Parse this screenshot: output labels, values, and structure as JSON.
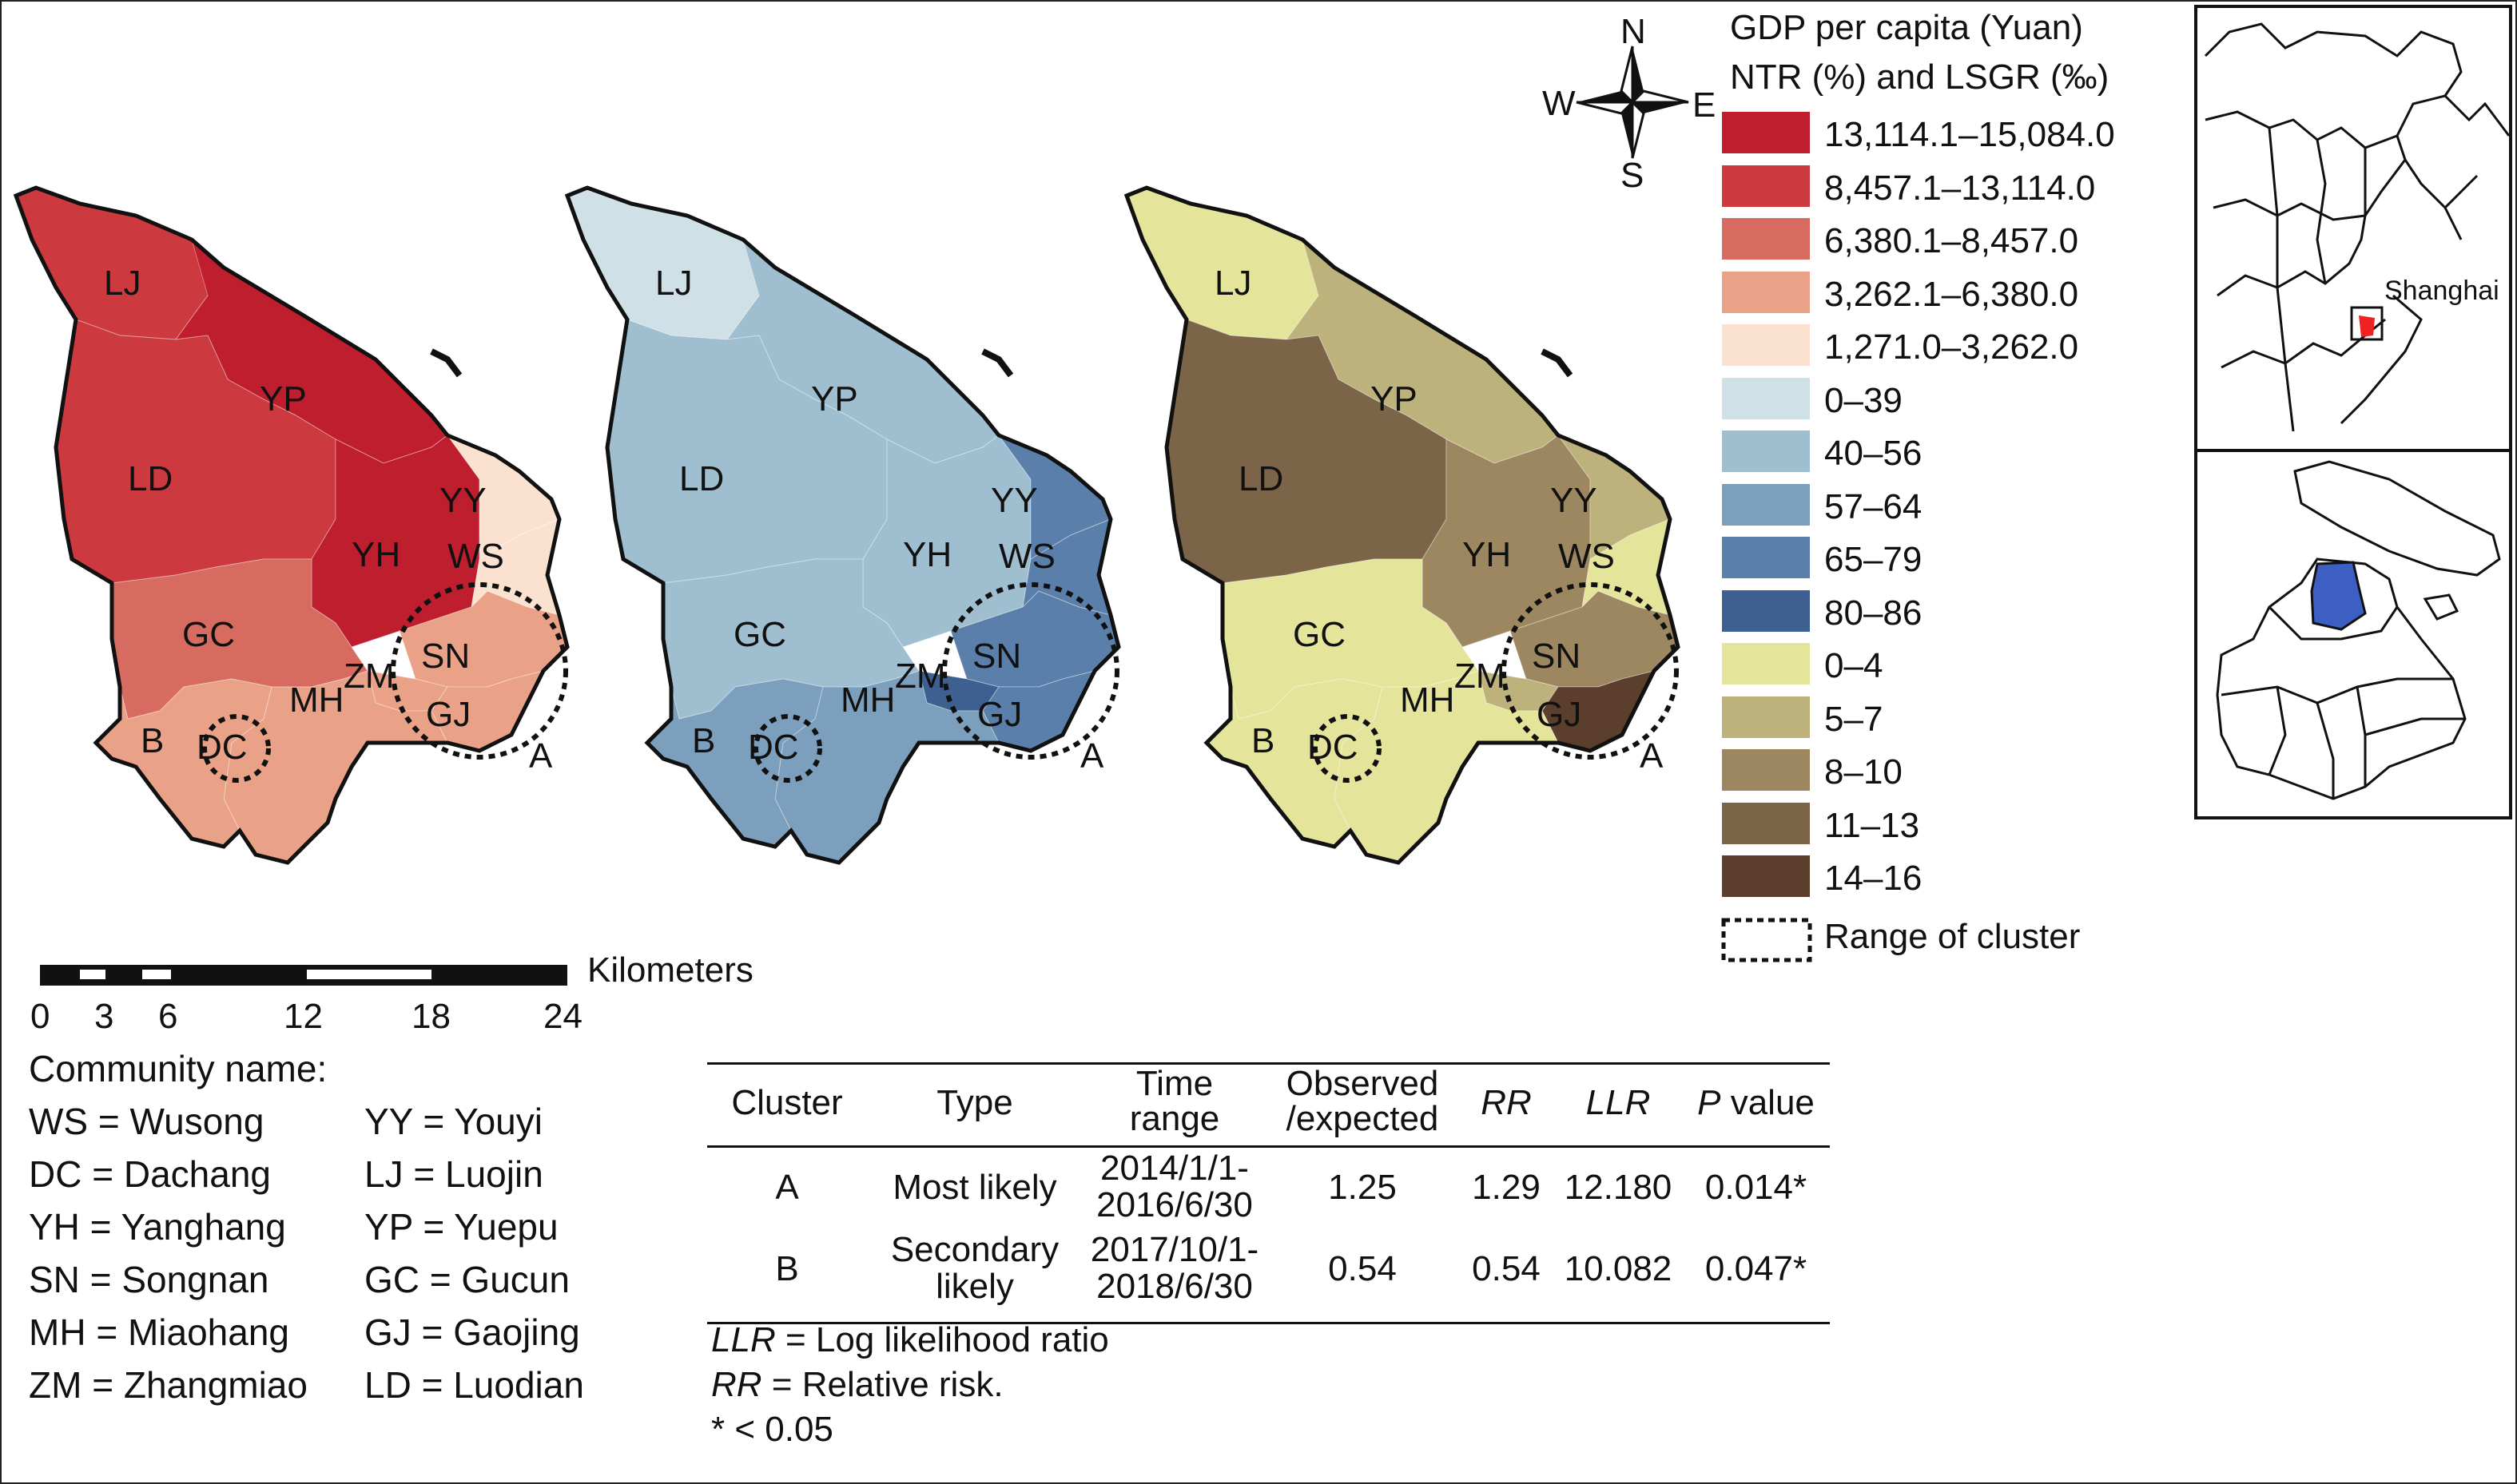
{
  "legend": {
    "title_gdp": "GDP per capita (Yuan)",
    "title_ntr": "NTR (%) and LSGR (‰)",
    "gdp": [
      {
        "label": "13,114.1–15,084.0",
        "color": "#be1e2d"
      },
      {
        "label": "8,457.1–13,114.0",
        "color": "#cc3a40"
      },
      {
        "label": "6,380.1–8,457.0",
        "color": "#d76b5f"
      },
      {
        "label": "3,262.1–6,380.0",
        "color": "#e9a287"
      },
      {
        "label": "1,271.0–3,262.0",
        "color": "#fbe2d0"
      }
    ],
    "ntr": [
      {
        "label": "0–39",
        "color": "#cfe1e6"
      },
      {
        "label": "40–56",
        "color": "#9fbfd1"
      },
      {
        "label": "57–64",
        "color": "#7c9fbd"
      },
      {
        "label": "65–79",
        "color": "#5a7fab"
      },
      {
        "label": "80–86",
        "color": "#3d6091"
      }
    ],
    "lsgr": [
      {
        "label": "0–4",
        "color": "#e4e49a"
      },
      {
        "label": "5–7",
        "color": "#bdb27b"
      },
      {
        "label": "8–10",
        "color": "#9c8760"
      },
      {
        "label": "11–13",
        "color": "#7b6447"
      },
      {
        "label": "14–16",
        "color": "#5b3e2c"
      }
    ],
    "cluster_label": "Range of cluster"
  },
  "compass": {
    "n": "N",
    "s": "S",
    "e": "E",
    "w": "W"
  },
  "maps": {
    "labels": {
      "lj": "LJ",
      "yp": "YP",
      "ld": "LD",
      "yy": "YY",
      "ws": "WS",
      "yh": "YH",
      "gc": "GC",
      "sn": "SN",
      "zm": "ZM",
      "mh": "MH",
      "gj": "GJ",
      "b": "B",
      "dc": "DC",
      "a": "A"
    },
    "colors": {
      "gdp": {
        "lj": "#cc3a40",
        "yp": "#be1e2d",
        "ld": "#cc3a40",
        "yh": "#be1e2d",
        "gc": "#d76b5f",
        "mh": "#e9a287",
        "b": "#e9a287",
        "sn": "#e9a287",
        "gj": "#e9a287",
        "zm": "#e9a287",
        "yy": "#fbe2d0",
        "ws": "#fbe2d0"
      },
      "ntr": {
        "lj": "#cfe1e6",
        "yp": "#9fbfd1",
        "ld": "#9fbfd1",
        "yh": "#9fbfd1",
        "gc": "#9fbfd1",
        "mh": "#7c9fbd",
        "b": "#7c9fbd",
        "sn": "#5a7fab",
        "gj": "#5a7fab",
        "zm": "#3d6091",
        "yy": "#5a7fab",
        "ws": "#5a7fab"
      },
      "lsgr": {
        "lj": "#e4e49a",
        "yp": "#bdb27b",
        "ld": "#7b6447",
        "yh": "#9c8760",
        "gc": "#e4e49a",
        "mh": "#e4e49a",
        "b": "#e4e49a",
        "sn": "#9c8760",
        "gj": "#5b3e2c",
        "zm": "#bdb27b",
        "yy": "#bdb27b",
        "ws": "#e4e49a"
      }
    }
  },
  "inset": {
    "city_label": "Shanghai"
  },
  "scale": {
    "unit": "Kilometers",
    "ticks": [
      "0",
      "3",
      "6",
      "12",
      "18",
      "24"
    ]
  },
  "community": {
    "title": "Community name:",
    "left": [
      "WS = Wusong",
      "DC = Dachang",
      "YH = Yanghang",
      "SN = Songnan",
      "MH = Miaohang",
      "ZM = Zhangmiao"
    ],
    "right": [
      "YY = Youyi",
      "LJ = Luojin",
      "YP = Yuepu",
      "GC = Gucun",
      "GJ = Gaojing",
      "LD = Luodian"
    ]
  },
  "table": {
    "headers": {
      "cluster": "Cluster",
      "type": "Type",
      "time1": "Time",
      "time2": "range",
      "oe1": "Observed",
      "oe2": "/expected",
      "rr": "RR",
      "llr": "LLR",
      "p_it": "P",
      "p_rest": " value"
    },
    "rows": [
      {
        "cluster": "A",
        "type1": "",
        "type2": "Most likely",
        "time1": "2014/1/1-",
        "time2": "2016/6/30",
        "oe": "1.25",
        "rr": "1.29",
        "llr": "12.180",
        "p": "0.014*"
      },
      {
        "cluster": "B",
        "type1": "Secondary",
        "type2": "likely",
        "time1": "2017/10/1-",
        "time2": "2018/6/30",
        "oe": "0.54",
        "rr": "0.54",
        "llr": "10.082",
        "p": "0.047*"
      }
    ],
    "notes": {
      "llr_abbr": "LLR",
      "llr_text": " = Log likelihood ratio",
      "rr_abbr": "RR",
      "rr_text": " = Relative risk.",
      "sig": "* < 0.05"
    }
  }
}
